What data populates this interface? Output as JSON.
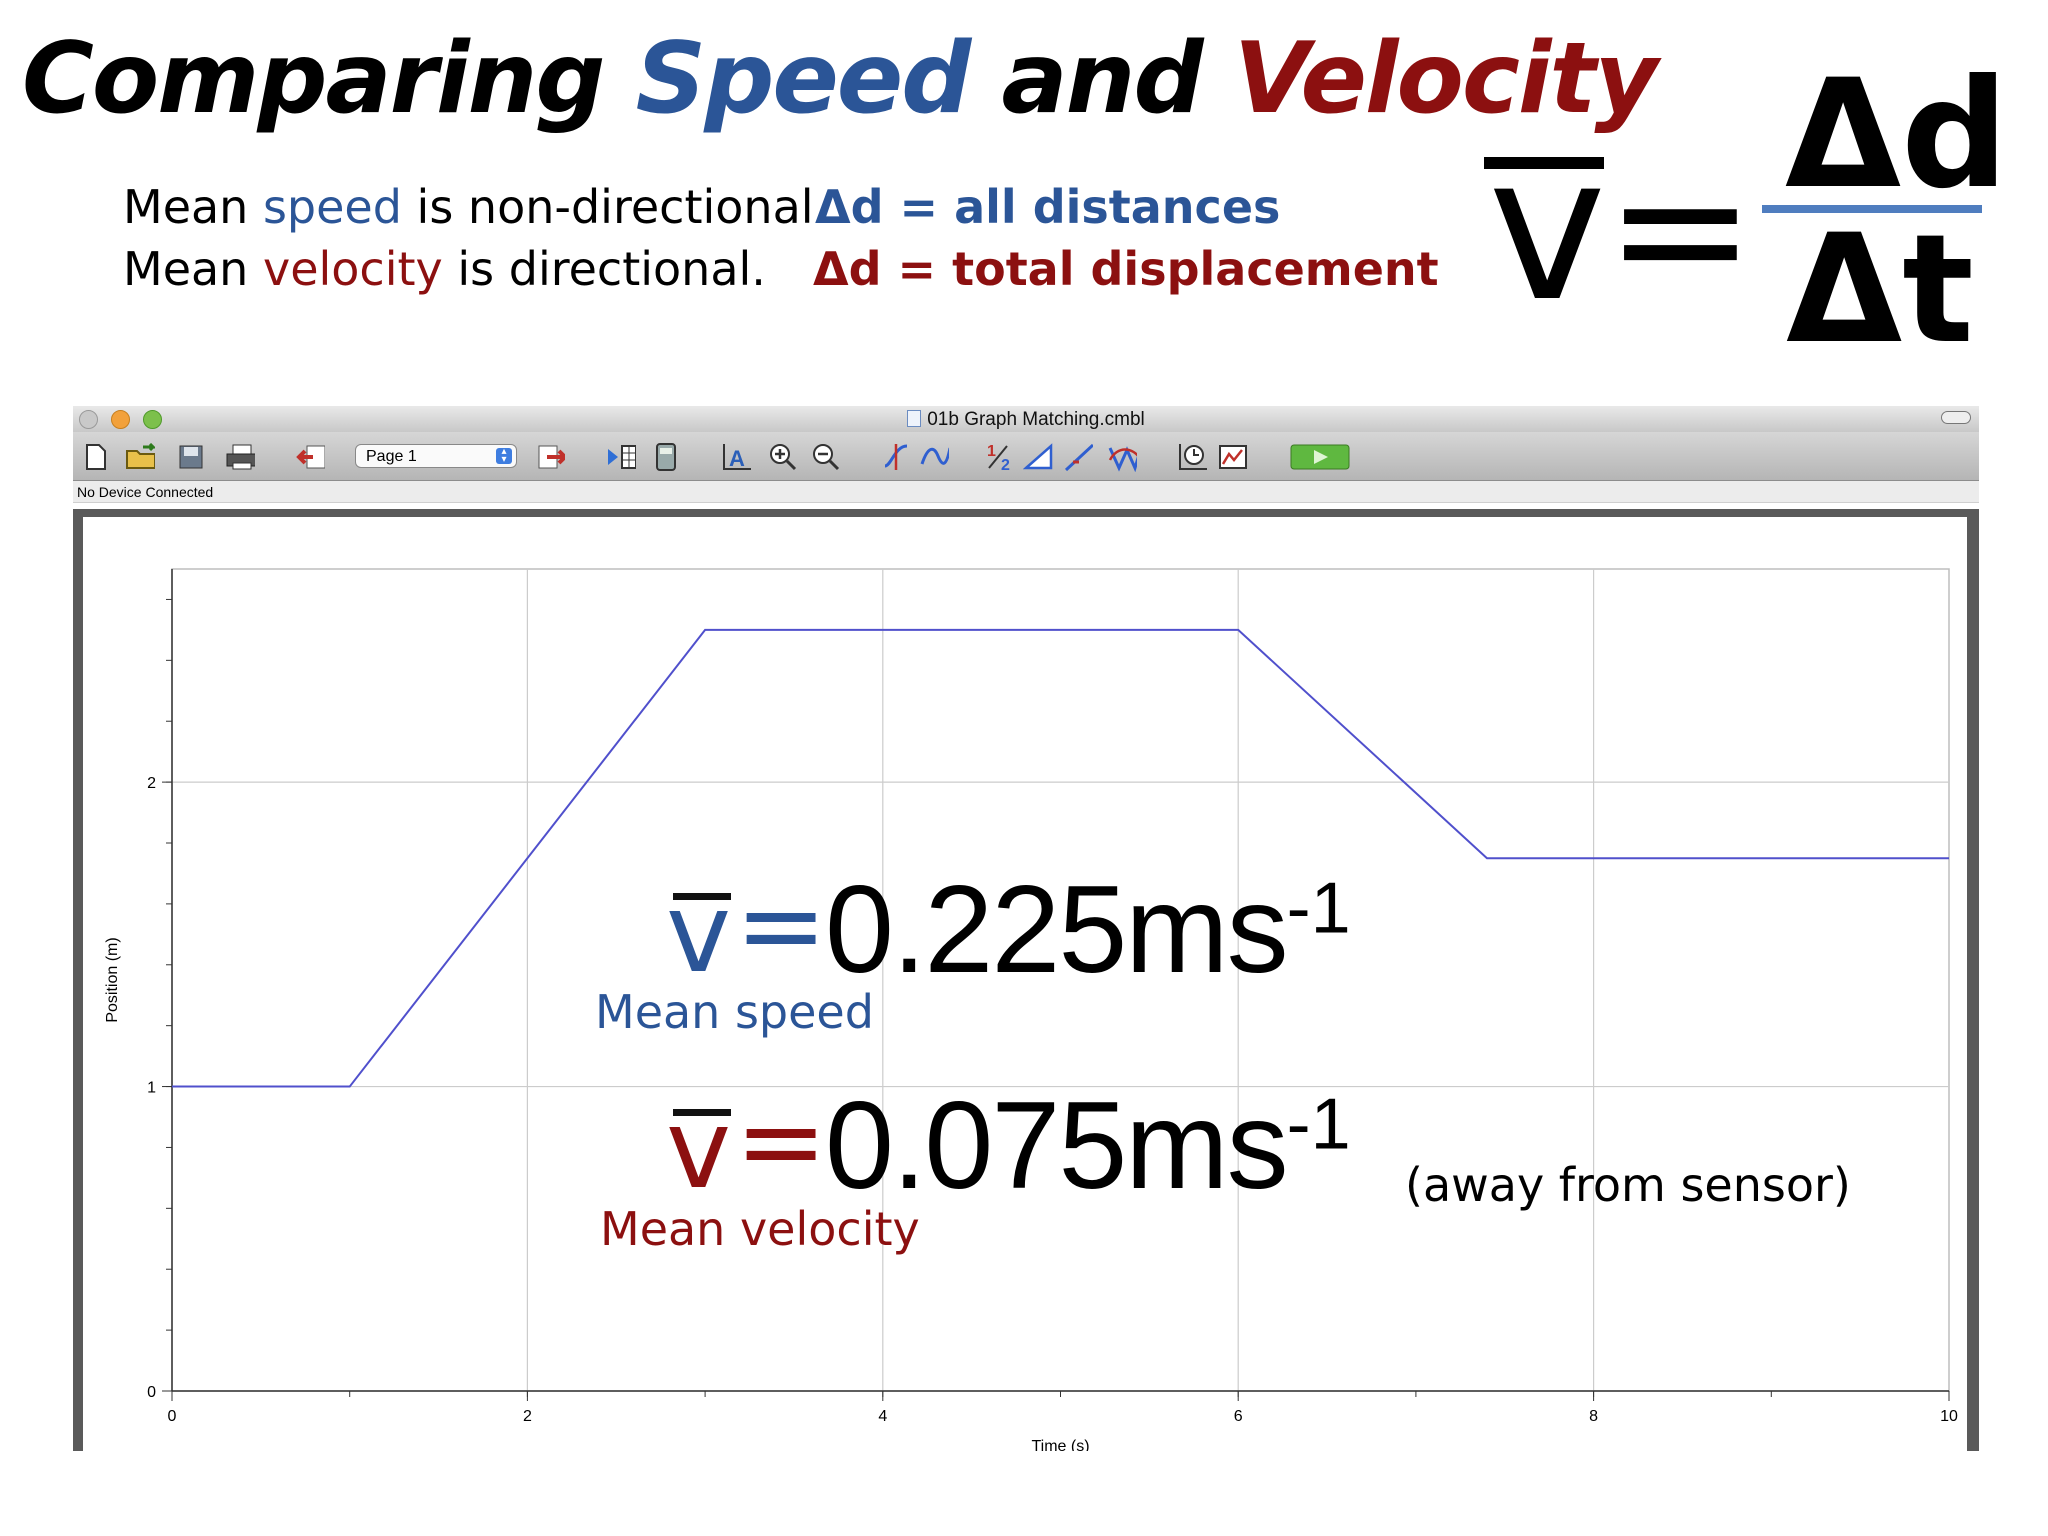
{
  "title": {
    "part1": "Comparing ",
    "speed": "Speed",
    "and": " and ",
    "velocity": "Velocity"
  },
  "lines": {
    "speed_pre": "Mean ",
    "speed_word": "speed",
    "speed_post": " is non-directional.",
    "velocity_pre": "Mean ",
    "velocity_word": "velocity",
    "velocity_post": " is directional."
  },
  "definitions": {
    "speed": "Δd = all distances",
    "velocity": "Δd = total displacement"
  },
  "formula": {
    "lhs": "v",
    "eq": "=",
    "numerator": "Δd",
    "denominator": "Δt"
  },
  "window": {
    "title": "01b Graph Matching.cmbl",
    "page_select": "Page 1",
    "status": "No Device Connected"
  },
  "colors": {
    "speed": "#2b5597",
    "velocity": "#8c1010",
    "plot_line": "#5050cc",
    "fraction_bar": "#4f7dbf"
  },
  "toolbar_icons": [
    "new-file-icon",
    "open-folder-icon",
    "save-icon",
    "print-icon",
    "back-page-icon",
    "page-select",
    "next-page-icon",
    "data-browser-icon",
    "calculator-icon",
    "autoscale-icon",
    "zoom-in-icon",
    "zoom-out-icon",
    "examine-icon",
    "tangent-icon",
    "integral-icon",
    "stats-icon",
    "linear-fit-icon",
    "curve-fit-icon",
    "clock-icon",
    "graph-match-icon",
    "collect-button"
  ],
  "overlay": {
    "speed_symbol": "v",
    "speed_eq": "=",
    "speed_value": "0.225ms",
    "speed_exp": "-1",
    "speed_label": "Mean speed",
    "velocity_symbol": "v",
    "velocity_eq": "=",
    "velocity_value": "0.075ms",
    "velocity_exp": "-1",
    "velocity_label": "Mean velocity",
    "velocity_note": "(away from sensor)"
  },
  "chart_data": {
    "type": "line",
    "xlabel": "Time (s)",
    "ylabel": "Position (m)",
    "xlim": [
      0,
      10
    ],
    "ylim": [
      0,
      2.7
    ],
    "xticks": [
      0,
      2,
      4,
      6,
      8,
      10
    ],
    "yticks": [
      0,
      1,
      2
    ],
    "grid": true,
    "series": [
      {
        "x": [
          0,
          1,
          3,
          6,
          7.4,
          10
        ],
        "y": [
          1.0,
          1.0,
          2.5,
          2.5,
          1.75,
          1.75
        ]
      }
    ]
  }
}
